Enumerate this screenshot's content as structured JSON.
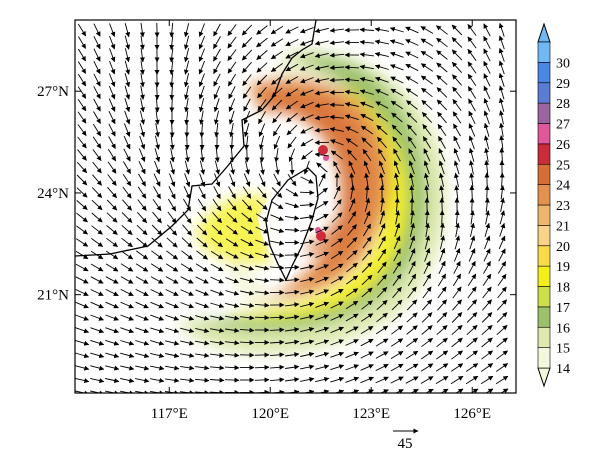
{
  "map": {
    "lat_ticks": [
      {
        "value": 27,
        "label": "27°N"
      },
      {
        "value": 24,
        "label": "24°N"
      },
      {
        "value": 21,
        "label": "21°N"
      }
    ],
    "lon_ticks": [
      {
        "value": 117,
        "label": "117°E"
      },
      {
        "value": 120,
        "label": "120°E"
      },
      {
        "value": 123,
        "label": "123°E"
      },
      {
        "value": 126,
        "label": "126°E"
      }
    ],
    "lon_range": [
      114.2,
      127.3
    ],
    "lat_range": [
      18.1,
      29.1
    ],
    "reference_vector": {
      "value": "45"
    },
    "storm_center": {
      "lon": 121.3,
      "lat": 24.6
    }
  },
  "colorbar": {
    "levels": [
      "14",
      "15",
      "16",
      "17",
      "18",
      "19",
      "20",
      "21",
      "23",
      "24",
      "25",
      "26",
      "27",
      "28",
      "29",
      "30"
    ],
    "colors": [
      "#f5f7dc",
      "#dde9b0",
      "#9cc16b",
      "#cde04a",
      "#f3ef1a",
      "#f8dc4a",
      "#f7d287",
      "#f0b66e",
      "#e3924f",
      "#d66f36",
      "#cc2b3b",
      "#e0579a",
      "#9a64a0",
      "#5c7bd4",
      "#4a86e6",
      "#6fb8f4"
    ]
  }
}
